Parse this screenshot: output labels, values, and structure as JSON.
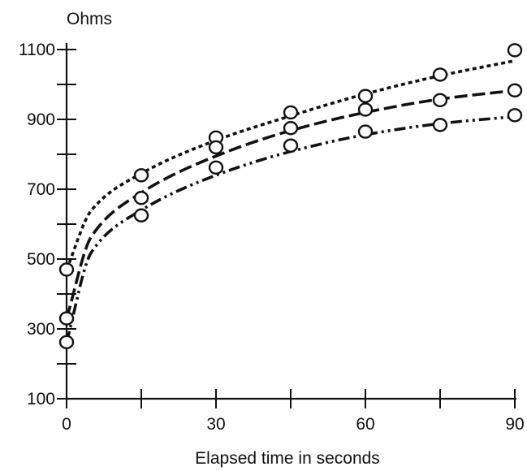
{
  "chart_data": {
    "type": "scatter",
    "ylabel": "Ohms",
    "xlabel": "Elapsed time in seconds",
    "xlim": [
      0,
      90
    ],
    "ylim": [
      100,
      1100
    ],
    "x_ticks": [
      0,
      15,
      30,
      45,
      60,
      75,
      90
    ],
    "x_tick_labels": [
      "0",
      "30",
      "60",
      "90"
    ],
    "x_tick_label_values": [
      0,
      30,
      60,
      90
    ],
    "y_ticks": [
      100,
      200,
      300,
      400,
      500,
      600,
      700,
      800,
      900,
      1000,
      1100
    ],
    "y_tick_labels": [
      "100",
      "300",
      "500",
      "700",
      "900",
      "1100"
    ],
    "y_tick_label_values": [
      100,
      300,
      500,
      700,
      900,
      1100
    ],
    "grid": false,
    "series": [
      {
        "line_style": "dotted",
        "x": [
          0,
          15,
          30,
          45,
          60,
          75,
          90
        ],
        "y": [
          470,
          740,
          848,
          920,
          967,
          1028,
          1098
        ],
        "curve": [
          [
            0,
            470
          ],
          [
            5,
            640
          ],
          [
            15,
            745
          ],
          [
            30,
            840
          ],
          [
            45,
            910
          ],
          [
            60,
            973
          ],
          [
            75,
            1025
          ],
          [
            90,
            1068
          ]
        ]
      },
      {
        "line_style": "long-dash",
        "x": [
          0,
          15,
          30,
          45,
          60,
          75,
          90
        ],
        "y": [
          330,
          675,
          820,
          875,
          928,
          955,
          983
        ],
        "curve": [
          [
            0,
            330
          ],
          [
            5,
            565
          ],
          [
            15,
            690
          ],
          [
            30,
            795
          ],
          [
            45,
            868
          ],
          [
            60,
            920
          ],
          [
            75,
            958
          ],
          [
            90,
            983
          ]
        ]
      },
      {
        "line_style": "dash-dot-dot",
        "x": [
          0,
          15,
          30,
          45,
          60,
          75,
          90
        ],
        "y": [
          262,
          625,
          762,
          825,
          865,
          884,
          912
        ],
        "curve": [
          [
            0,
            262
          ],
          [
            5,
            520
          ],
          [
            15,
            640
          ],
          [
            30,
            740
          ],
          [
            45,
            808
          ],
          [
            60,
            856
          ],
          [
            75,
            888
          ],
          [
            90,
            908
          ]
        ]
      }
    ]
  }
}
